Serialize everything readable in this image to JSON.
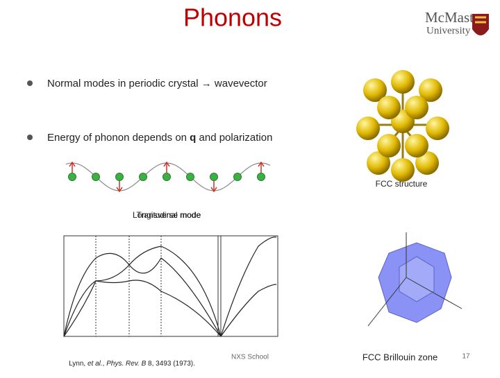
{
  "header": {
    "title": "Phonons",
    "logo": {
      "line1": "McMaster",
      "line2": "University"
    }
  },
  "bullets": [
    {
      "text": "Normal modes in periodic crystal → wavevector"
    },
    {
      "parts": [
        "Energy of phonon depends on ",
        "q",
        " and polarization"
      ]
    }
  ],
  "figures": {
    "fcc_caption": "FCC structure",
    "mode_labels": [
      "Longitudinal mode",
      "Transverse mode"
    ],
    "citation": [
      "Lynn, ",
      "et al.",
      ", ",
      "Phys. Rev. B",
      " 8, 3493 (1973)."
    ],
    "bz_caption": "FCC Brillouin zone"
  },
  "footer": {
    "school": "NXS School",
    "page": "17"
  }
}
